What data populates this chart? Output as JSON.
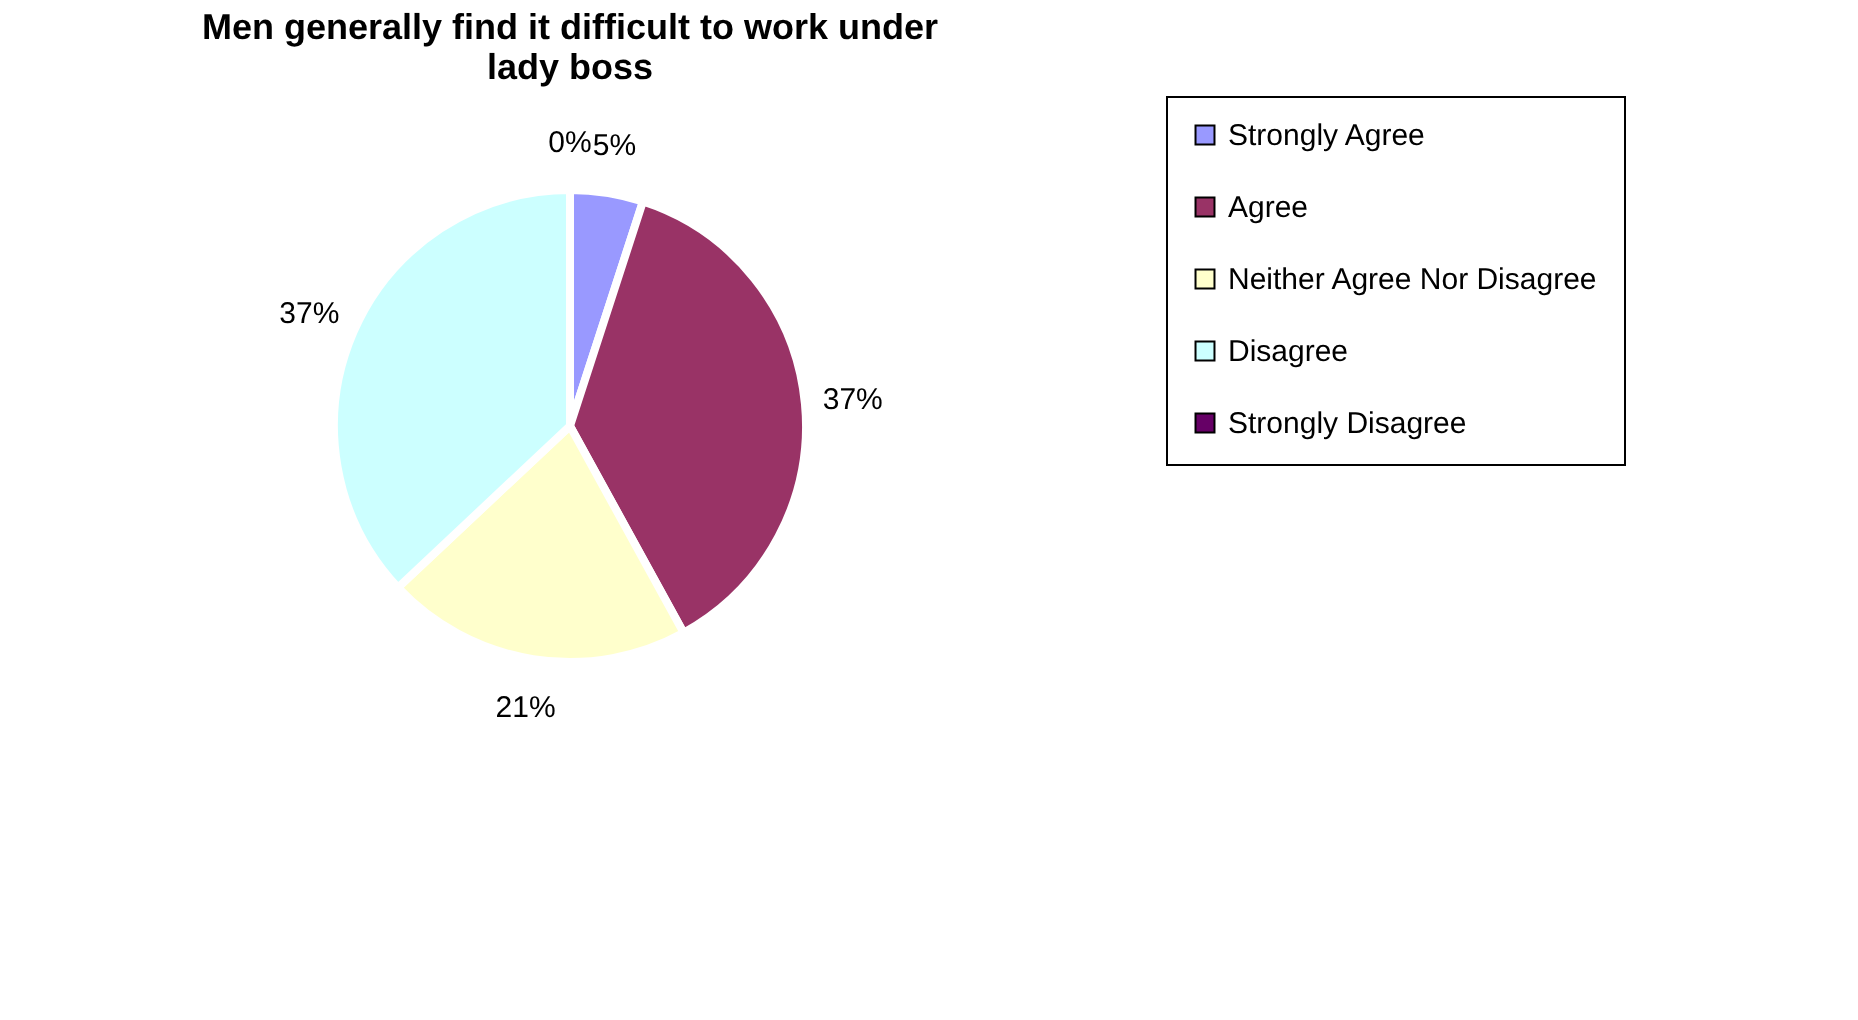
{
  "chart_data": {
    "type": "pie",
    "title": "Men generally find it difficult to work under lady boss",
    "categories": [
      "Strongly Agree",
      "Agree",
      "Neither Agree Nor Disagree",
      "Disagree",
      "Strongly Disagree"
    ],
    "values": [
      5,
      37,
      21,
      37,
      0
    ],
    "colors": [
      "#9999ff",
      "#993366",
      "#ffffcc",
      "#ccffff",
      "#660066"
    ],
    "value_labels": [
      "5%",
      "37%",
      "21%",
      "37%",
      "0%"
    ],
    "legend": "right"
  }
}
